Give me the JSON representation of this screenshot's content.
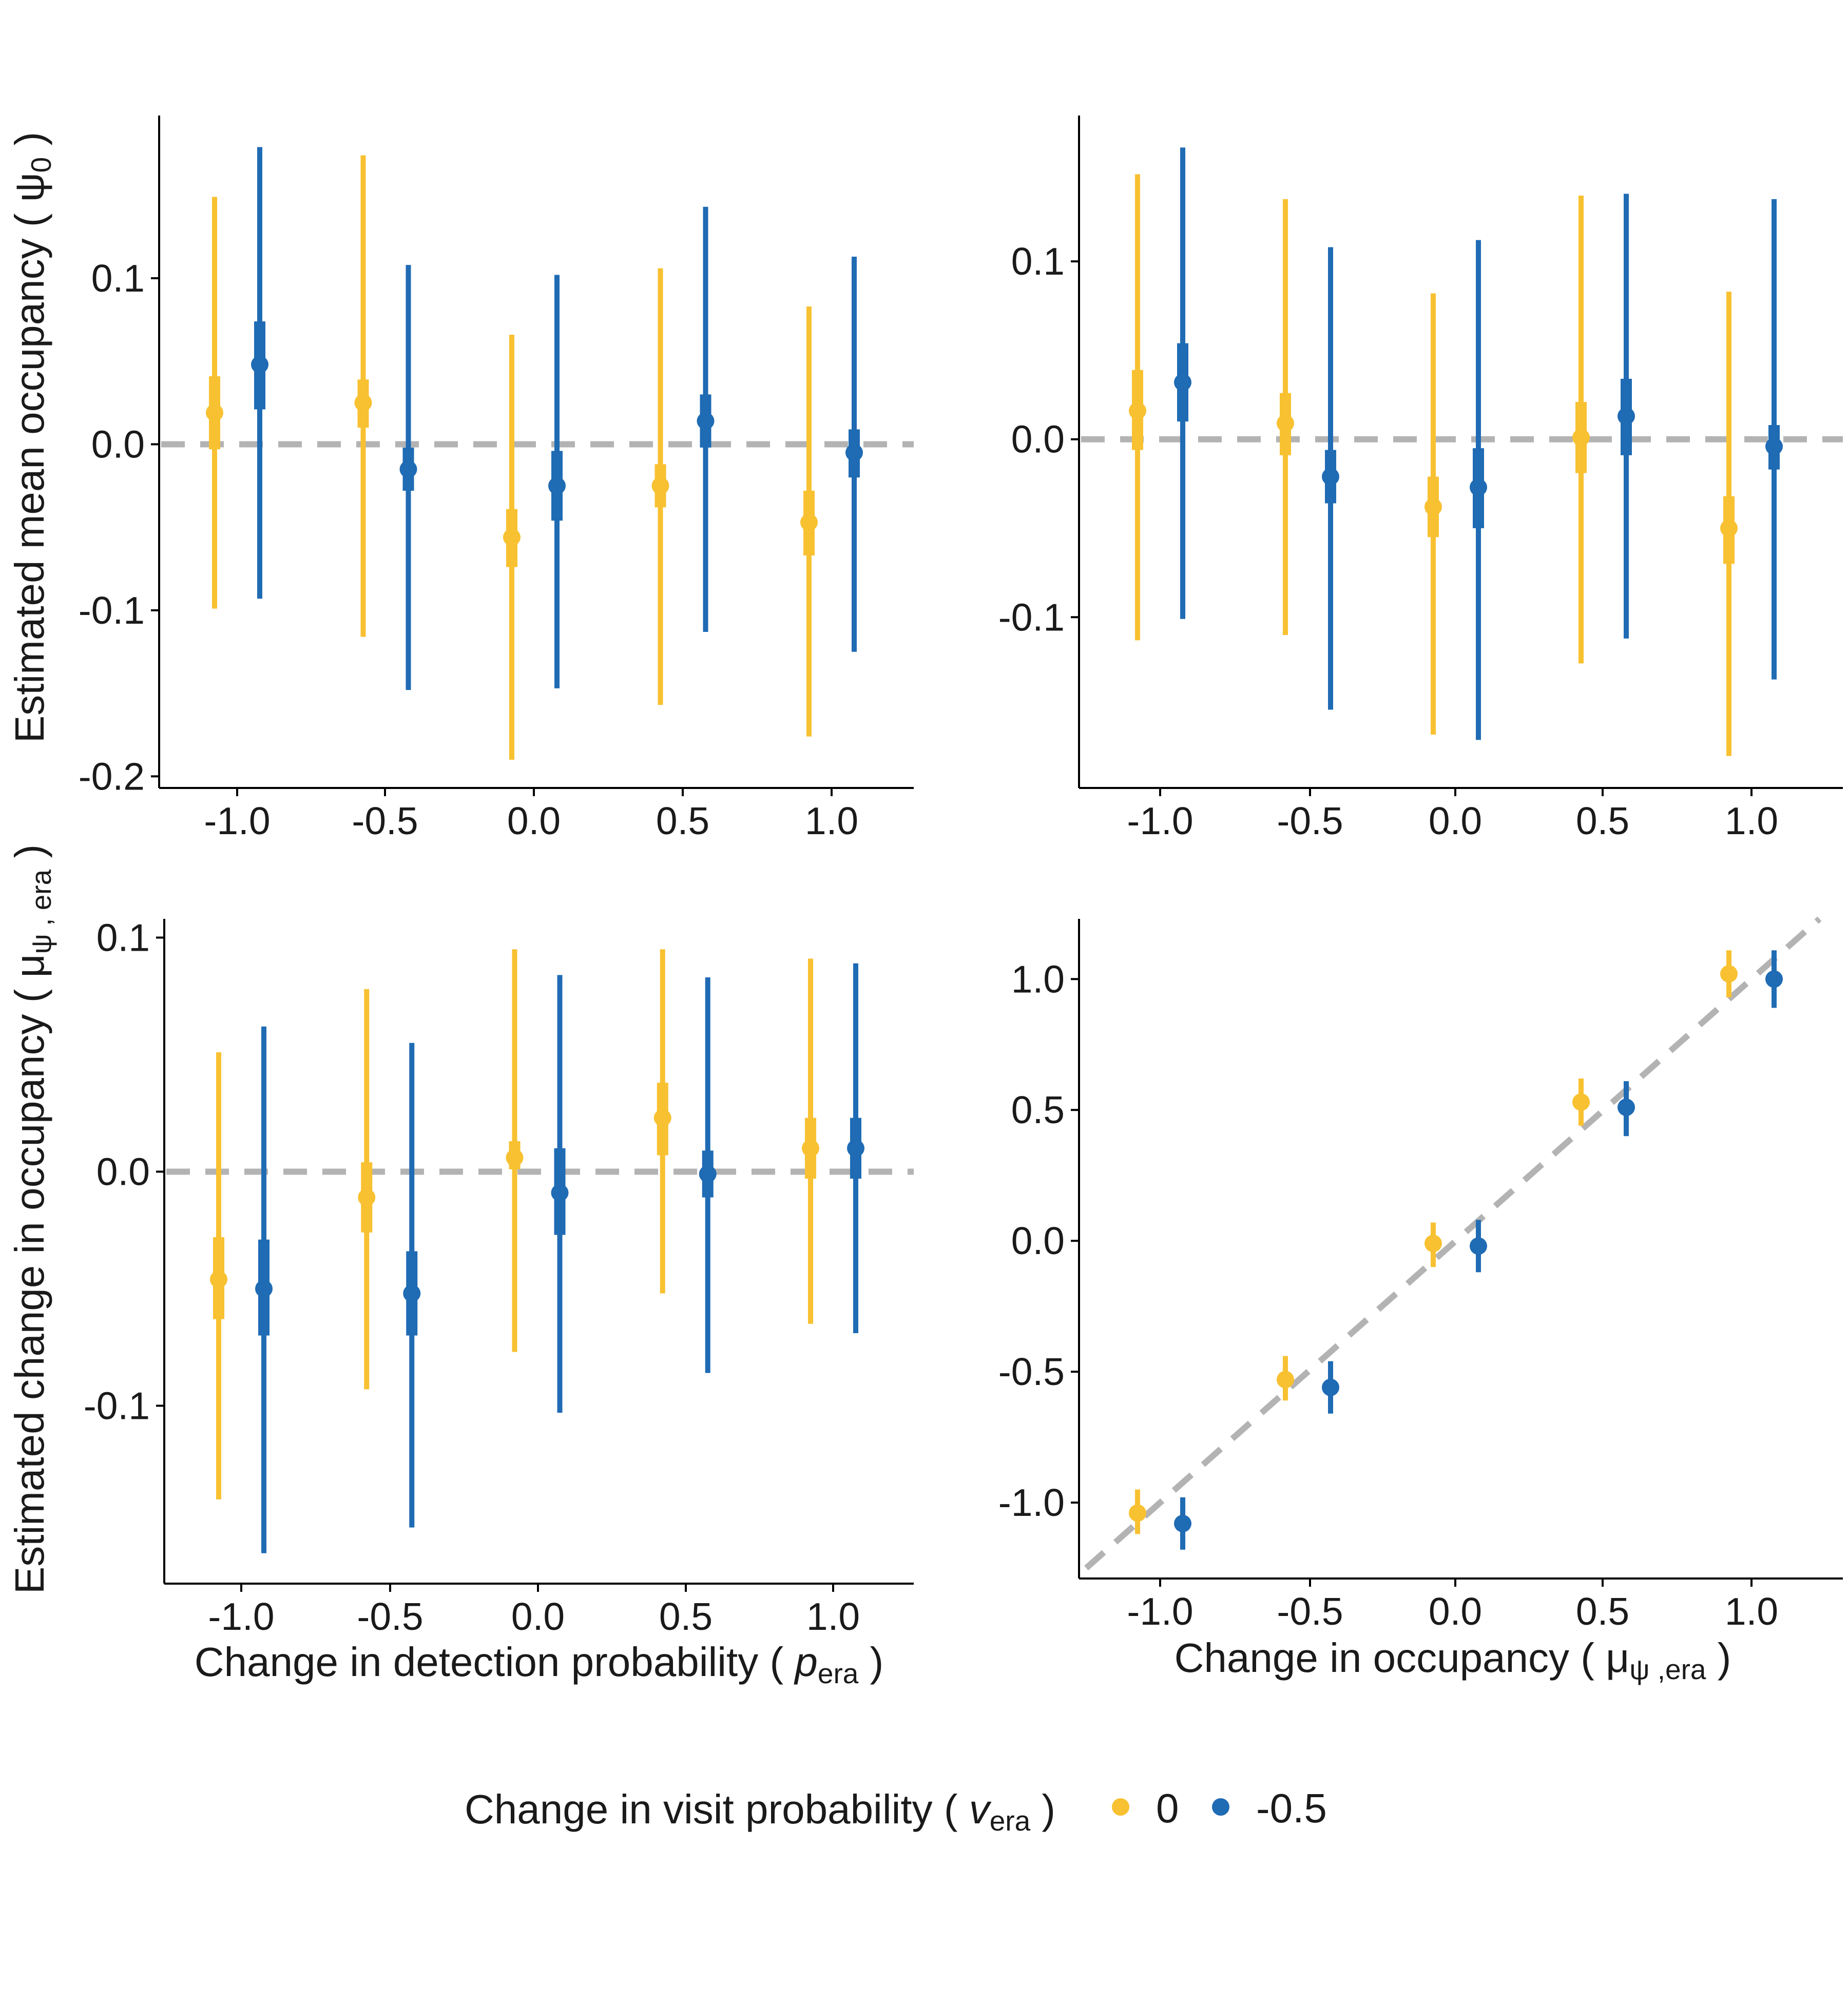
{
  "legend": {
    "title_main": "Change in visit probability ( ",
    "title_var": "v",
    "title_sub": "era",
    "title_close": " )",
    "entries": [
      {
        "label": "0",
        "color": "#F8C131"
      },
      {
        "label": "-0.5",
        "color": "#1F6BB4"
      }
    ]
  },
  "colors": {
    "yellow": "#F8C131",
    "blue": "#1F6BB4",
    "reference": "#B3B3B3",
    "axis": "#000000"
  },
  "labels": {
    "top_ylabel_main": "Estimated mean occupancy ( ",
    "top_ylabel_sym": "ψ",
    "top_ylabel_sub": "0",
    "top_ylabel_close": " )",
    "bottom_ylabel_main": "Estimated change in occupancy ( ",
    "bottom_ylabel_sym": "μ",
    "bottom_ylabel_sub": "ψ , era",
    "bottom_ylabel_close": " )",
    "bl_xlabel_main": "Change in detection probability ( ",
    "bl_xlabel_var": "p",
    "bl_xlabel_sub": "era",
    "bl_xlabel_close": " )",
    "br_xlabel_main": "Change in occupancy ( ",
    "br_xlabel_sym": "μ",
    "br_xlabel_sub": "ψ ,era",
    "br_xlabel_close": " )"
  },
  "chart_data": [
    {
      "type": "scatter",
      "panel": "top-left",
      "x_ticks": [
        "-1.0",
        "-0.5",
        "0.0",
        "0.5",
        "1.0"
      ],
      "y_ticks": [
        "-0.2",
        "-0.1",
        "0.0",
        "0.1"
      ],
      "xlim": [
        -1.25,
        1.25
      ],
      "ylim": [
        -0.207,
        0.198
      ],
      "reference": "horizontal",
      "series": [
        {
          "name": "0",
          "color": "#F8C131",
          "x": [
            -1,
            -0.5,
            0,
            0.5,
            1
          ],
          "mean": [
            0.019,
            0.025,
            -0.056,
            -0.025,
            -0.047
          ],
          "inner_low": [
            -0.003,
            0.01,
            -0.074,
            -0.038,
            -0.067
          ],
          "inner_high": [
            0.041,
            0.039,
            -0.039,
            -0.012,
            -0.028
          ],
          "outer_low": [
            -0.099,
            -0.116,
            -0.19,
            -0.157,
            -0.176
          ],
          "outer_high": [
            0.149,
            0.174,
            0.066,
            0.106,
            0.083
          ]
        },
        {
          "name": "-0.5",
          "color": "#1F6BB4",
          "x": [
            -1,
            -0.5,
            0,
            0.5,
            1
          ],
          "mean": [
            0.048,
            -0.015,
            -0.025,
            0.014,
            -0.005
          ],
          "inner_low": [
            0.021,
            -0.028,
            -0.046,
            -0.002,
            -0.02
          ],
          "inner_high": [
            0.074,
            -0.002,
            -0.004,
            0.03,
            0.009
          ],
          "outer_low": [
            -0.093,
            -0.148,
            -0.147,
            -0.113,
            -0.125
          ],
          "outer_high": [
            0.179,
            0.108,
            0.102,
            0.143,
            0.113
          ]
        }
      ]
    },
    {
      "type": "scatter",
      "panel": "top-right",
      "x_ticks": [
        "-1.0",
        "-0.5",
        "0.0",
        "0.5",
        "1.0"
      ],
      "y_ticks": [
        "-0.1",
        "0.0",
        "0.1"
      ],
      "xlim": [
        -1.25,
        1.25
      ],
      "ylim": [
        -0.196,
        0.182
      ],
      "reference": "horizontal",
      "series": [
        {
          "name": "0",
          "color": "#F8C131",
          "x": [
            -1,
            -0.5,
            0,
            0.5,
            1
          ],
          "mean": [
            0.016,
            0.009,
            -0.038,
            0.001,
            -0.05
          ],
          "inner_low": [
            -0.006,
            -0.009,
            -0.055,
            -0.019,
            -0.07
          ],
          "inner_high": [
            0.039,
            0.026,
            -0.021,
            0.021,
            -0.032
          ],
          "outer_low": [
            -0.113,
            -0.11,
            -0.166,
            -0.126,
            -0.178
          ],
          "outer_high": [
            0.149,
            0.135,
            0.082,
            0.137,
            0.083
          ]
        },
        {
          "name": "-0.5",
          "color": "#1F6BB4",
          "x": [
            -1,
            -0.5,
            0,
            0.5,
            1
          ],
          "mean": [
            0.032,
            -0.021,
            -0.027,
            0.013,
            -0.004
          ],
          "inner_low": [
            0.01,
            -0.036,
            -0.05,
            -0.009,
            -0.017
          ],
          "inner_high": [
            0.054,
            -0.006,
            -0.005,
            0.034,
            0.008
          ],
          "outer_low": [
            -0.101,
            -0.152,
            -0.169,
            -0.112,
            -0.135
          ],
          "outer_high": [
            0.164,
            0.108,
            0.112,
            0.138,
            0.135
          ]
        }
      ]
    },
    {
      "type": "scatter",
      "panel": "bottom-left",
      "x_ticks": [
        "-1.0",
        "-0.5",
        "0.0",
        "0.5",
        "1.0"
      ],
      "y_ticks": [
        "-0.1",
        "0.0",
        "0.1"
      ],
      "xlim": [
        -1.25,
        1.25
      ],
      "ylim": [
        -0.176,
        0.108
      ],
      "reference": "horizontal",
      "series": [
        {
          "name": "0",
          "color": "#F8C131",
          "x": [
            -1,
            -0.5,
            0,
            0.5,
            1
          ],
          "mean": [
            -0.046,
            -0.011,
            0.006,
            0.023,
            0.01
          ],
          "inner_low": [
            -0.063,
            -0.026,
            0.001,
            0.007,
            -0.003
          ],
          "inner_high": [
            -0.028,
            0.004,
            0.013,
            0.038,
            0.023
          ],
          "outer_low": [
            -0.14,
            -0.093,
            -0.077,
            -0.052,
            -0.065
          ],
          "outer_high": [
            0.051,
            0.078,
            0.095,
            0.095,
            0.091
          ]
        },
        {
          "name": "-0.5",
          "color": "#1F6BB4",
          "x": [
            -1,
            -0.5,
            0,
            0.5,
            1
          ],
          "mean": [
            -0.05,
            -0.052,
            -0.009,
            -0.001,
            0.01
          ],
          "inner_low": [
            -0.07,
            -0.07,
            -0.027,
            -0.011,
            -0.003
          ],
          "inner_high": [
            -0.029,
            -0.034,
            0.01,
            0.009,
            0.023
          ],
          "outer_low": [
            -0.163,
            -0.152,
            -0.103,
            -0.086,
            -0.069
          ],
          "outer_high": [
            0.062,
            0.055,
            0.084,
            0.083,
            0.089
          ]
        }
      ]
    },
    {
      "type": "scatter",
      "panel": "bottom-right",
      "x_ticks": [
        "-1.0",
        "-0.5",
        "0.0",
        "0.5",
        "1.0"
      ],
      "y_ticks": [
        "-1.0",
        "-0.5",
        "0.0",
        "0.5",
        "1.0"
      ],
      "xlim": [
        -1.25,
        1.25
      ],
      "ylim": [
        -1.29,
        1.23
      ],
      "reference": "diagonal",
      "series": [
        {
          "name": "0",
          "color": "#F8C131",
          "x": [
            -1,
            -0.5,
            0,
            0.5,
            1
          ],
          "mean": [
            -1.04,
            -0.53,
            -0.01,
            0.53,
            1.02
          ],
          "low": [
            -1.12,
            -0.61,
            -0.1,
            0.44,
            0.93
          ],
          "high": [
            -0.95,
            -0.44,
            0.07,
            0.62,
            1.11
          ]
        },
        {
          "name": "-0.5",
          "color": "#1F6BB4",
          "x": [
            -1,
            -0.5,
            0,
            0.5,
            1
          ],
          "mean": [
            -1.08,
            -0.56,
            -0.02,
            0.51,
            1.0
          ],
          "low": [
            -1.18,
            -0.66,
            -0.12,
            0.4,
            0.89
          ],
          "high": [
            -0.98,
            -0.46,
            0.08,
            0.61,
            1.11
          ]
        }
      ]
    }
  ]
}
